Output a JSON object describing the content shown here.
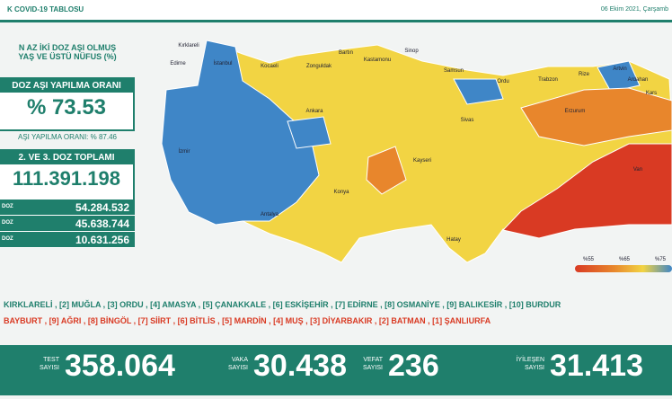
{
  "header": {
    "title": "K COVID-19 TABLOSU",
    "date": "06 Ekim 2021, Çarşamb"
  },
  "panel": {
    "heading_1": "N AZ İKİ DOZ AŞI OLMUŞ",
    "heading_2": "YAŞ VE ÜSTÜ NÜFUS (%)",
    "rate_label": "DOZ AŞI YAPILMA ORANI",
    "rate_value": "% 73.53",
    "first_dose_rate": "AŞI YAPILMA ORANI: % 87.46",
    "total_label": "2. VE 3. DOZ TOPLAMI",
    "total_value": "111.391.198",
    "doses": [
      {
        "label": "DOZ",
        "value": "54.284.532"
      },
      {
        "label": "DOZ",
        "value": "45.638.744"
      },
      {
        "label": "DOZ",
        "value": "10.631.256"
      }
    ]
  },
  "map": {
    "provinces": [
      "Kırklareli",
      "Edirne",
      "İstanbul",
      "Kocaeli",
      "Zonguldak",
      "Bartın",
      "Kastamonu",
      "Sinop",
      "Samsun",
      "Ordu",
      "Trabzon",
      "Rize",
      "Artvin",
      "Ardahan",
      "Kars",
      "Ankara",
      "Konya",
      "Kayseri",
      "Sivas",
      "Erzurum",
      "Van",
      "Hatay",
      "Antalya",
      "İzmir"
    ],
    "legend": [
      "%55",
      "%65",
      "%75"
    ]
  },
  "top_list": "KIRKLARELİ , [2] MUĞLA , [3] ORDU , [4] AMASYA , [5] ÇANAKKALE , [6] ESKİŞEHİR , [7] EDİRNE , [8] OSMANİYE , [9] BALIKESİR , [10] BURDUR",
  "bottom_list": "BAYBURT , [9] AĞRI , [8] BİNGÖL , [7] SİİRT , [6] BİTLİS , [5] MARDİN , [4] MUŞ , [3] DİYARBAKIR , [2] BATMAN , [1] ŞANLIURFA",
  "stats": [
    {
      "label_1": "TEST",
      "label_2": "SAYISI",
      "value": "358.064"
    },
    {
      "label_1": "VAKA",
      "label_2": "SAYISI",
      "value": "30.438"
    },
    {
      "label_1": "VEFAT",
      "label_2": "SAYISI",
      "value": "236"
    },
    {
      "label_1": "İYİLEŞEN",
      "label_2": "SAYISI",
      "value": "31.413"
    }
  ]
}
